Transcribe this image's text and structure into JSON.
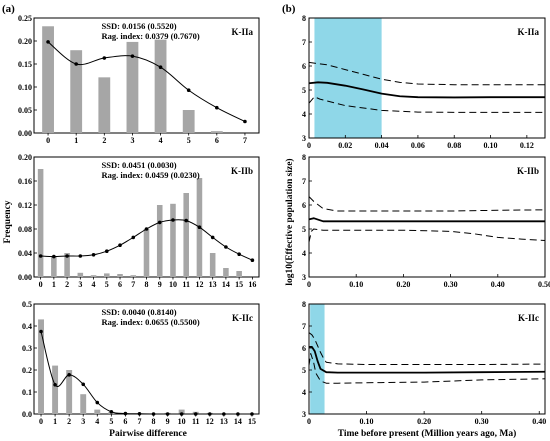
{
  "panel_labels": {
    "left": "(a)",
    "right": "(b)"
  },
  "left_axis": {
    "ylabel": "Frequency",
    "xlabel": "Pairwise difference"
  },
  "right_axis": {
    "ylabel": "log10(Effective population size)",
    "xlabel": "Time before present (Million years ago, Ma)"
  },
  "chart_data": [
    {
      "type": "bar",
      "id": "a1",
      "label": "K-IIa",
      "stats": [
        "SSD: 0.0156 (0.5520)",
        "Rag. index: 0.0379 (0.7670)"
      ],
      "categories": [
        0,
        1,
        2,
        3,
        4,
        5,
        6,
        7
      ],
      "values": [
        0.232,
        0.18,
        0.121,
        0.198,
        0.203,
        0.05,
        0.004,
        0.0
      ],
      "expected": [
        0.198,
        0.15,
        0.163,
        0.167,
        0.143,
        0.093,
        0.055,
        0.025
      ],
      "ylim": [
        0,
        0.25
      ],
      "yticks": [
        "0.00",
        "0.05",
        "0.10",
        "0.15",
        "0.20",
        "0.25"
      ]
    },
    {
      "type": "bar",
      "id": "a2",
      "label": "K-IIb",
      "stats": [
        "SSD: 0.0451 (0.0030)",
        "Rag. index: 0.0459 (0.0230)"
      ],
      "categories": [
        0,
        1,
        2,
        3,
        4,
        5,
        6,
        7,
        8,
        9,
        10,
        11,
        12,
        13,
        14,
        15,
        16
      ],
      "values": [
        0.18,
        0.035,
        0.04,
        0.007,
        0.003,
        0.006,
        0.005,
        0.003,
        0.08,
        0.12,
        0.122,
        0.14,
        0.165,
        0.04,
        0.015,
        0.01,
        0.0
      ],
      "expected": [
        0.035,
        0.034,
        0.035,
        0.035,
        0.037,
        0.043,
        0.053,
        0.066,
        0.08,
        0.091,
        0.095,
        0.094,
        0.083,
        0.066,
        0.05,
        0.038,
        0.028
      ],
      "ylim": [
        0,
        0.2
      ],
      "yticks": [
        "0.00",
        "0.04",
        "0.08",
        "0.12",
        "0.16",
        "0.20"
      ]
    },
    {
      "type": "bar",
      "id": "a3",
      "label": "K-IIc",
      "stats": [
        "SSD: 0.0040 (0.8140)",
        "Rag. index: 0.0655 (0.5500)"
      ],
      "categories": [
        0,
        1,
        2,
        3,
        4,
        5,
        6,
        7,
        8,
        9,
        10,
        11,
        12,
        13,
        14,
        15
      ],
      "values": [
        0.43,
        0.22,
        0.2,
        0.09,
        0.02,
        0.01,
        0.0,
        0.0,
        0.0,
        0.005,
        0.02,
        0.01,
        0.005,
        0.0,
        0.0,
        0.0
      ],
      "expected": [
        0.375,
        0.133,
        0.178,
        0.135,
        0.052,
        0.01,
        0.002,
        0.001,
        0.0,
        0.0,
        0.0,
        0.0,
        0.0,
        0.0,
        0.0,
        0.0
      ],
      "ylim": [
        0,
        0.5
      ],
      "yticks": [
        "0.0",
        "0.1",
        "0.2",
        "0.3",
        "0.4",
        "0.5"
      ]
    },
    {
      "type": "line",
      "id": "b1",
      "label": "K-IIa",
      "xlim": [
        0,
        0.13
      ],
      "ylim": [
        3,
        8
      ],
      "xticks": [
        0,
        0.02,
        0.04,
        0.06,
        0.08,
        0.1,
        0.12
      ],
      "xtick_labels": [
        "0",
        "0.02",
        "0.04",
        "0.06",
        "0.08",
        "0.10",
        "0.12"
      ],
      "yticks": [
        3,
        4,
        5,
        6,
        7,
        8
      ],
      "shade": [
        0.003,
        0.04
      ],
      "median": {
        "x": [
          0,
          0.005,
          0.01,
          0.02,
          0.03,
          0.04,
          0.05,
          0.06,
          0.08,
          0.1,
          0.12,
          0.13
        ],
        "y": [
          5.28,
          5.32,
          5.3,
          5.18,
          5.02,
          4.85,
          4.74,
          4.7,
          4.69,
          4.7,
          4.7,
          4.7
        ]
      },
      "upper": {
        "x": [
          0,
          0.01,
          0.02,
          0.03,
          0.04,
          0.05,
          0.06,
          0.08,
          0.1,
          0.12,
          0.13
        ],
        "y": [
          6.15,
          6.05,
          5.85,
          5.65,
          5.45,
          5.32,
          5.25,
          5.22,
          5.22,
          5.22,
          5.22
        ]
      },
      "lower": {
        "x": [
          0,
          0.003,
          0.006,
          0.02,
          0.04,
          0.06,
          0.08,
          0.1,
          0.12,
          0.13
        ],
        "y": [
          4.45,
          4.72,
          4.62,
          4.35,
          4.15,
          4.08,
          4.07,
          4.07,
          4.07,
          4.07
        ]
      }
    },
    {
      "type": "line",
      "id": "b2",
      "label": "K-IIb",
      "xlim": [
        0,
        0.5
      ],
      "ylim": [
        3,
        8
      ],
      "xticks": [
        0,
        0.1,
        0.2,
        0.3,
        0.4,
        0.5
      ],
      "xtick_labels": [
        "0",
        "0.10",
        "0.20",
        "0.30",
        "0.40",
        "0.50"
      ],
      "yticks": [
        3,
        4,
        5,
        6,
        7,
        8
      ],
      "shade": null,
      "median": {
        "x": [
          0,
          0.01,
          0.03,
          0.06,
          0.1,
          0.2,
          0.3,
          0.4,
          0.5
        ],
        "y": [
          5.4,
          5.45,
          5.32,
          5.32,
          5.32,
          5.32,
          5.32,
          5.32,
          5.32
        ]
      },
      "upper": {
        "x": [
          0,
          0.01,
          0.03,
          0.06,
          0.1,
          0.2,
          0.3,
          0.4,
          0.5
        ],
        "y": [
          6.35,
          6.15,
          5.85,
          5.75,
          5.75,
          5.75,
          5.75,
          5.78,
          5.8
        ]
      },
      "lower": {
        "x": [
          0,
          0.005,
          0.01,
          0.03,
          0.1,
          0.2,
          0.3,
          0.35,
          0.4,
          0.45,
          0.5
        ],
        "y": [
          4.45,
          4.9,
          5.0,
          4.95,
          4.95,
          4.95,
          4.9,
          4.8,
          4.65,
          4.58,
          4.52
        ]
      }
    },
    {
      "type": "line",
      "id": "b3",
      "label": "K-IIc",
      "xlim": [
        0,
        0.41
      ],
      "ylim": [
        3,
        8
      ],
      "xticks": [
        0,
        0.1,
        0.2,
        0.3,
        0.4
      ],
      "xtick_labels": [
        "0",
        "0.10",
        "0.20",
        "0.30",
        "0.40"
      ],
      "yticks": [
        3,
        4,
        5,
        6,
        7,
        8
      ],
      "shade": [
        0.002,
        0.027
      ],
      "median": {
        "x": [
          0,
          0.005,
          0.01,
          0.015,
          0.02,
          0.03,
          0.05,
          0.1,
          0.2,
          0.3,
          0.41
        ],
        "y": [
          6.05,
          6.05,
          5.85,
          5.4,
          5.05,
          4.9,
          4.88,
          4.88,
          4.88,
          4.9,
          4.92
        ]
      },
      "upper": {
        "x": [
          0,
          0.005,
          0.01,
          0.02,
          0.025,
          0.03,
          0.05,
          0.1,
          0.2,
          0.3,
          0.41
        ],
        "y": [
          6.7,
          6.6,
          6.4,
          5.8,
          5.55,
          5.35,
          5.28,
          5.25,
          5.25,
          5.25,
          5.27
        ]
      },
      "lower": {
        "x": [
          0,
          0.003,
          0.008,
          0.012,
          0.02,
          0.03,
          0.05,
          0.1,
          0.2,
          0.3,
          0.41
        ],
        "y": [
          5.2,
          5.75,
          5.35,
          4.85,
          4.5,
          4.4,
          4.4,
          4.42,
          4.45,
          4.55,
          4.6
        ]
      }
    }
  ]
}
